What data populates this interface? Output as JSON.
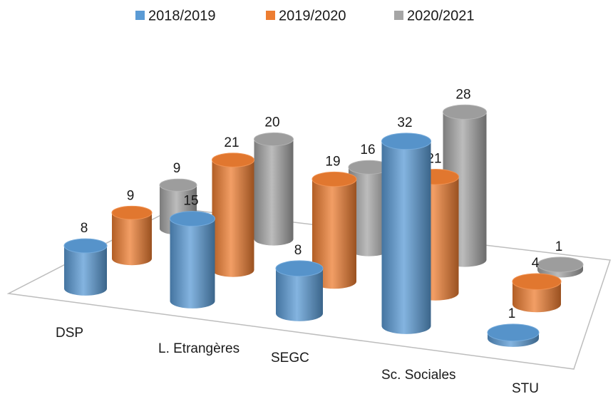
{
  "chart_data": {
    "type": "bar3d",
    "categories": [
      "DSP",
      "L. Etrangères",
      "SEGC",
      "Sc. Sociales",
      "STU"
    ],
    "series": [
      {
        "name": "2018/2019",
        "color": "#5b9bd5",
        "values": [
          8,
          15,
          8,
          32,
          1
        ]
      },
      {
        "name": "2019/2020",
        "color": "#ed7d31",
        "values": [
          9,
          21,
          19,
          21,
          4
        ]
      },
      {
        "name": "2020/2021",
        "color": "#a5a5a5",
        "values": [
          9,
          20,
          16,
          28,
          1
        ]
      }
    ]
  }
}
